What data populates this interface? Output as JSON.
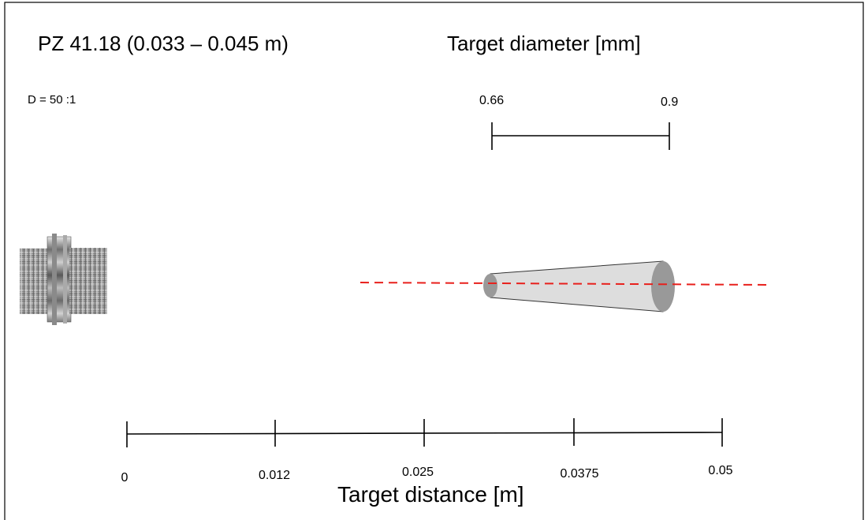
{
  "title": "PZ 41.18 (0.033 – 0.045 m)",
  "ratio_label": "D = 50 :1",
  "diameter": {
    "title": "Target diameter [mm]",
    "min": "0.66",
    "max": "0.9"
  },
  "distance": {
    "title": "Target distance [m]",
    "ticks": [
      "0",
      "0.012",
      "0.025",
      "0.0375",
      "0.05"
    ]
  },
  "colors": {
    "beam_axis": "#e8201c",
    "cone_fill": "#dddddd",
    "cone_end": "#999999",
    "sensor_body": "#7a7a7a"
  }
}
